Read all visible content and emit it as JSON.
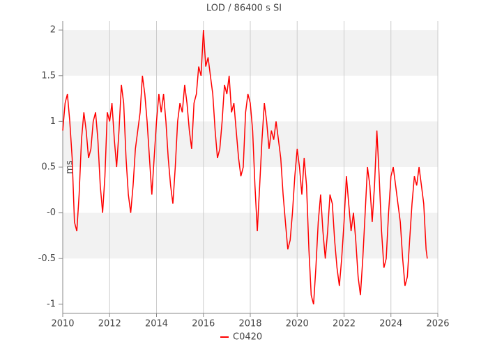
{
  "chart_data": {
    "type": "line",
    "title": "LOD / 86400 s SI",
    "y_label": "ms",
    "x": [
      2010.0,
      2010.1,
      2010.2,
      2010.3,
      2010.4,
      2010.5,
      2010.6,
      2010.7,
      2010.8,
      2010.9,
      2011.0,
      2011.1,
      2011.2,
      2011.3,
      2011.4,
      2011.5,
      2011.6,
      2011.7,
      2011.8,
      2011.9,
      2012.0,
      2012.1,
      2012.2,
      2012.3,
      2012.4,
      2012.5,
      2012.6,
      2012.7,
      2012.8,
      2012.9,
      2013.0,
      2013.1,
      2013.2,
      2013.3,
      2013.4,
      2013.5,
      2013.6,
      2013.7,
      2013.8,
      2013.9,
      2014.0,
      2014.1,
      2014.2,
      2014.3,
      2014.4,
      2014.5,
      2014.6,
      2014.7,
      2014.8,
      2014.9,
      2015.0,
      2015.1,
      2015.2,
      2015.3,
      2015.4,
      2015.5,
      2015.6,
      2015.7,
      2015.8,
      2015.9,
      2016.0,
      2016.1,
      2016.2,
      2016.3,
      2016.4,
      2016.5,
      2016.6,
      2016.7,
      2016.8,
      2016.9,
      2017.0,
      2017.1,
      2017.2,
      2017.3,
      2017.4,
      2017.5,
      2017.6,
      2017.7,
      2017.8,
      2017.9,
      2018.0,
      2018.1,
      2018.2,
      2018.3,
      2018.4,
      2018.5,
      2018.6,
      2018.7,
      2018.8,
      2018.9,
      2019.0,
      2019.1,
      2019.2,
      2019.3,
      2019.4,
      2019.5,
      2019.6,
      2019.7,
      2019.8,
      2019.9,
      2020.0,
      2020.1,
      2020.2,
      2020.3,
      2020.4,
      2020.5,
      2020.6,
      2020.7,
      2020.8,
      2020.9,
      2021.0,
      2021.1,
      2021.2,
      2021.3,
      2021.4,
      2021.5,
      2021.6,
      2021.7,
      2021.8,
      2021.9,
      2022.0,
      2022.1,
      2022.2,
      2022.3,
      2022.4,
      2022.5,
      2022.6,
      2022.7,
      2022.8,
      2022.9,
      2023.0,
      2023.1,
      2023.2,
      2023.3,
      2023.4,
      2023.5,
      2023.6,
      2023.7,
      2023.8,
      2023.9,
      2024.0,
      2024.1,
      2024.2,
      2024.3,
      2024.4,
      2024.5,
      2024.6,
      2024.7,
      2024.8,
      2024.9,
      2025.0,
      2025.1,
      2025.2,
      2025.3,
      2025.4,
      2025.5,
      2025.55
    ],
    "series": [
      {
        "name": "C0420",
        "color": "#ff0000",
        "values": [
          0.9,
          1.2,
          1.3,
          1.0,
          0.6,
          -0.1,
          -0.2,
          0.2,
          0.8,
          1.1,
          0.9,
          0.6,
          0.7,
          1.0,
          1.1,
          0.8,
          0.3,
          0.0,
          0.4,
          1.1,
          1.0,
          1.2,
          0.8,
          0.5,
          0.9,
          1.4,
          1.2,
          0.6,
          0.2,
          0.0,
          0.3,
          0.7,
          0.9,
          1.1,
          1.5,
          1.3,
          1.0,
          0.6,
          0.2,
          0.6,
          1.0,
          1.3,
          1.1,
          1.3,
          1.0,
          0.6,
          0.3,
          0.1,
          0.5,
          1.0,
          1.2,
          1.1,
          1.4,
          1.2,
          0.9,
          0.7,
          1.2,
          1.3,
          1.6,
          1.5,
          2.0,
          1.6,
          1.7,
          1.5,
          1.3,
          0.9,
          0.6,
          0.7,
          1.0,
          1.4,
          1.3,
          1.5,
          1.1,
          1.2,
          0.9,
          0.6,
          0.4,
          0.5,
          1.1,
          1.3,
          1.2,
          0.9,
          0.3,
          -0.2,
          0.3,
          0.8,
          1.2,
          1.0,
          0.7,
          0.9,
          0.8,
          1.0,
          0.8,
          0.6,
          0.2,
          -0.1,
          -0.4,
          -0.3,
          0.0,
          0.4,
          0.7,
          0.5,
          0.2,
          0.6,
          0.3,
          -0.4,
          -0.9,
          -1.0,
          -0.6,
          -0.1,
          0.2,
          -0.2,
          -0.5,
          -0.2,
          0.2,
          0.1,
          -0.3,
          -0.6,
          -0.8,
          -0.5,
          -0.1,
          0.4,
          0.1,
          -0.2,
          0.0,
          -0.3,
          -0.7,
          -0.9,
          -0.5,
          0.0,
          0.5,
          0.3,
          -0.1,
          0.3,
          0.9,
          0.4,
          -0.2,
          -0.6,
          -0.5,
          0.0,
          0.4,
          0.5,
          0.3,
          0.1,
          -0.1,
          -0.5,
          -0.8,
          -0.7,
          -0.3,
          0.1,
          0.4,
          0.3,
          0.5,
          0.3,
          0.1,
          -0.4,
          -0.5
        ]
      }
    ],
    "xlim": [
      2010,
      2026
    ],
    "xticks": [
      2010,
      2012,
      2014,
      2016,
      2018,
      2020,
      2022,
      2024,
      2026
    ],
    "ylim": [
      -1.1,
      2.1
    ],
    "yticks": [
      -1,
      -0.5,
      {
        "value": 0,
        "label": "-0"
      },
      0.5,
      1,
      1.5,
      2
    ],
    "grid": true,
    "legend": "bottom"
  }
}
